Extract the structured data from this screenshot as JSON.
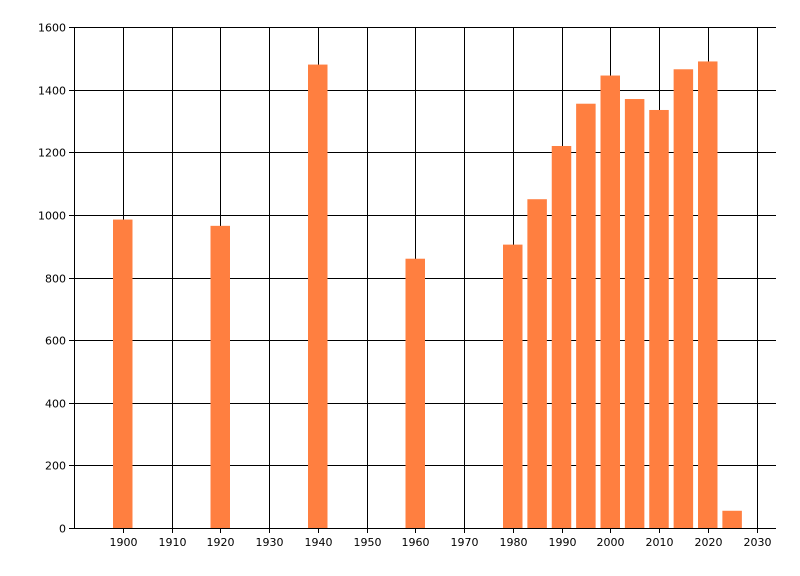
{
  "chart_data": {
    "type": "bar",
    "title": "",
    "xlabel": "",
    "ylabel": "",
    "x": [
      1900,
      1920,
      1940,
      1960,
      1980,
      1985,
      1990,
      1995,
      2000,
      2005,
      2010,
      2015,
      2020,
      2025
    ],
    "values": [
      985,
      965,
      1480,
      860,
      905,
      1050,
      1220,
      1355,
      1445,
      1370,
      1335,
      1465,
      1490,
      55
    ],
    "xlim": [
      1890,
      2034
    ],
    "ylim": [
      0,
      1600
    ],
    "xticks": [
      1900,
      1910,
      1920,
      1930,
      1940,
      1950,
      1960,
      1970,
      1980,
      1990,
      2000,
      2010,
      2020,
      2030
    ],
    "yticks": [
      0,
      200,
      400,
      600,
      800,
      1000,
      1200,
      1400,
      1600
    ],
    "bar_width_years": 4,
    "grid": true,
    "legend": false,
    "colors": {
      "bar": "#ff7f40",
      "grid": "#000000",
      "axis": "#000000",
      "background": "#ffffff"
    }
  }
}
